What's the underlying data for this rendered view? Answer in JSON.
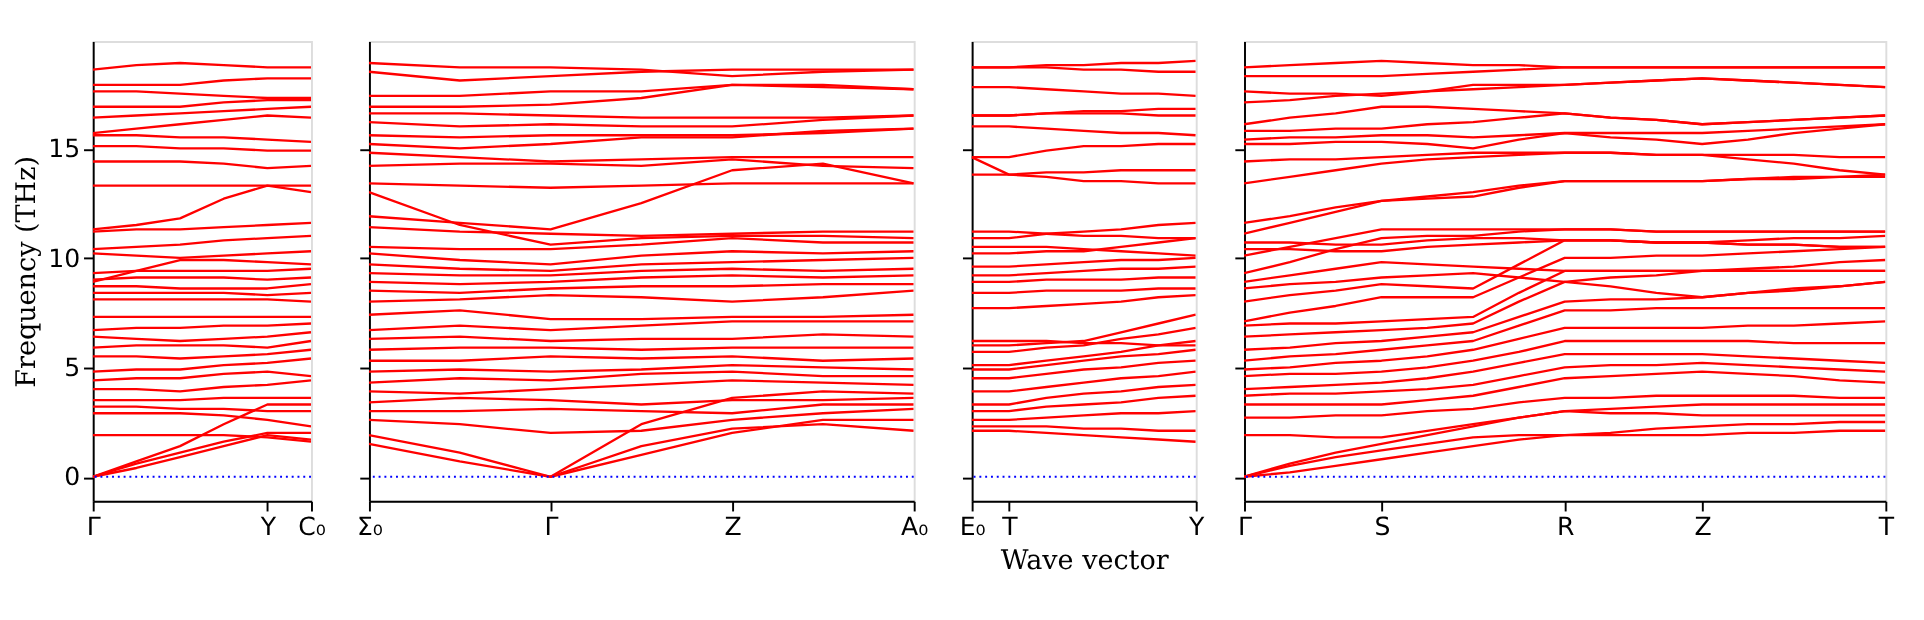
{
  "chart_data": [
    {
      "type": "line",
      "ylabel": "Frequency (THz)",
      "categories": [
        "Γ",
        null,
        null,
        null,
        "Y",
        "C₀"
      ],
      "ylim": [
        -1.1,
        19.9
      ],
      "yticks": [
        0,
        5,
        10,
        15
      ],
      "grid": false,
      "line_style": "solid",
      "marker": "none",
      "ref_lines": [
        {
          "axis": "y",
          "value": 0,
          "color": "#0000ff",
          "line_style": "dotted"
        }
      ],
      "series": [
        {
          "color": "#ff0000",
          "values": [
            0,
            0.4,
            0.9,
            1.4,
            1.9,
            1.7
          ]
        },
        {
          "color": "#ff0000",
          "values": [
            0,
            0.6,
            1.1,
            1.6,
            2.0,
            2.0
          ]
        },
        {
          "color": "#ff0000",
          "values": [
            0,
            0.7,
            1.4,
            2.4,
            3.3,
            3.3
          ]
        },
        {
          "color": "#ff0000",
          "values": [
            1.9,
            1.9,
            1.9,
            1.9,
            1.8,
            1.6
          ]
        },
        {
          "color": "#ff0000",
          "values": [
            2.9,
            2.9,
            2.9,
            2.8,
            2.6,
            2.3
          ]
        },
        {
          "color": "#ff0000",
          "values": [
            3.2,
            3.2,
            3.1,
            3.1,
            3.0,
            3.0
          ]
        },
        {
          "color": "#ff0000",
          "values": [
            3.5,
            3.5,
            3.5,
            3.6,
            3.6,
            3.6
          ]
        },
        {
          "color": "#ff0000",
          "values": [
            4.0,
            4.0,
            3.9,
            4.1,
            4.2,
            4.4
          ]
        },
        {
          "color": "#ff0000",
          "values": [
            4.4,
            4.5,
            4.5,
            4.7,
            4.8,
            4.6
          ]
        },
        {
          "color": "#ff0000",
          "values": [
            4.8,
            4.9,
            4.9,
            5.1,
            5.2,
            5.4
          ]
        },
        {
          "color": "#ff0000",
          "values": [
            5.5,
            5.5,
            5.4,
            5.5,
            5.6,
            5.8
          ]
        },
        {
          "color": "#ff0000",
          "values": [
            5.9,
            6.0,
            6.0,
            6.0,
            5.9,
            6.2
          ]
        },
        {
          "color": "#ff0000",
          "values": [
            6.4,
            6.3,
            6.2,
            6.3,
            6.4,
            6.6
          ]
        },
        {
          "color": "#ff0000",
          "values": [
            6.7,
            6.8,
            6.8,
            6.9,
            6.9,
            7.0
          ]
        },
        {
          "color": "#ff0000",
          "values": [
            7.3,
            7.3,
            7.3,
            7.3,
            7.3,
            7.3
          ]
        },
        {
          "color": "#ff0000",
          "values": [
            8.1,
            8.1,
            8.1,
            8.1,
            8.1,
            8.0
          ]
        },
        {
          "color": "#ff0000",
          "values": [
            8.4,
            8.4,
            8.4,
            8.4,
            8.3,
            8.4
          ]
        },
        {
          "color": "#ff0000",
          "values": [
            8.7,
            8.7,
            8.6,
            8.6,
            8.6,
            8.8
          ]
        },
        {
          "color": "#ff0000",
          "values": [
            9.0,
            9.1,
            9.1,
            9.1,
            9.0,
            9.1
          ]
        },
        {
          "color": "#ff0000",
          "values": [
            9.3,
            9.4,
            9.4,
            9.4,
            9.4,
            9.5
          ]
        },
        {
          "color": "#ff0000",
          "values": [
            8.9,
            9.4,
            9.9,
            9.9,
            9.8,
            9.7
          ]
        },
        {
          "color": "#ff0000",
          "values": [
            10.2,
            10.1,
            10.0,
            10.1,
            10.2,
            10.3
          ]
        },
        {
          "color": "#ff0000",
          "values": [
            10.4,
            10.5,
            10.6,
            10.8,
            10.9,
            11.0
          ]
        },
        {
          "color": "#ff0000",
          "values": [
            11.2,
            11.3,
            11.3,
            11.4,
            11.5,
            11.6
          ]
        },
        {
          "color": "#ff0000",
          "values": [
            11.3,
            11.5,
            11.8,
            12.7,
            13.3,
            13.0
          ]
        },
        {
          "color": "#ff0000",
          "values": [
            13.3,
            13.3,
            13.3,
            13.3,
            13.3,
            13.3
          ]
        },
        {
          "color": "#ff0000",
          "values": [
            14.4,
            14.4,
            14.4,
            14.3,
            14.1,
            14.2
          ]
        },
        {
          "color": "#ff0000",
          "values": [
            15.1,
            15.1,
            15.0,
            15.0,
            14.9,
            14.9
          ]
        },
        {
          "color": "#ff0000",
          "values": [
            15.6,
            15.6,
            15.5,
            15.5,
            15.4,
            15.3
          ]
        },
        {
          "color": "#ff0000",
          "values": [
            15.7,
            15.9,
            16.1,
            16.3,
            16.5,
            16.4
          ]
        },
        {
          "color": "#ff0000",
          "values": [
            16.4,
            16.5,
            16.6,
            16.7,
            16.8,
            16.9
          ]
        },
        {
          "color": "#ff0000",
          "values": [
            16.9,
            16.9,
            16.9,
            17.1,
            17.2,
            17.2
          ]
        },
        {
          "color": "#ff0000",
          "values": [
            17.6,
            17.6,
            17.5,
            17.4,
            17.3,
            17.3
          ]
        },
        {
          "color": "#ff0000",
          "values": [
            17.9,
            17.9,
            17.9,
            18.1,
            18.2,
            18.2
          ]
        },
        {
          "color": "#ff0000",
          "values": [
            18.6,
            18.8,
            18.9,
            18.8,
            18.7,
            18.7
          ]
        }
      ]
    },
    {
      "type": "line",
      "categories": [
        "Σ₀",
        null,
        "Γ",
        null,
        "Z",
        null,
        "A₀"
      ],
      "ylim": [
        -1.1,
        19.9
      ],
      "yticks": [
        {
          "value": 0,
          "label": null
        },
        {
          "value": 5,
          "label": null
        },
        {
          "value": 10,
          "label": null
        },
        {
          "value": 15,
          "label": null
        }
      ],
      "tick_labels": "x",
      "grid": false,
      "line_style": "solid",
      "marker": "none",
      "ref_lines": [
        {
          "axis": "y",
          "value": 0,
          "color": "#0000ff",
          "line_style": "dotted"
        }
      ],
      "series": [
        {
          "color": "#ff0000",
          "values": [
            1.5,
            0.7,
            0,
            1.4,
            2.2,
            2.4,
            2.1
          ]
        },
        {
          "color": "#ff0000",
          "values": [
            1.9,
            1.1,
            0,
            1.0,
            2.0,
            2.6,
            2.6
          ]
        },
        {
          "color": "#ff0000",
          "values": [
            null,
            null,
            0,
            2.4,
            3.6,
            3.9,
            3.8
          ]
        },
        {
          "color": "#ff0000",
          "values": [
            2.6,
            2.4,
            2.0,
            2.1,
            2.6,
            2.9,
            3.1
          ]
        },
        {
          "color": "#ff0000",
          "values": [
            3.0,
            3.0,
            3.1,
            3.0,
            2.9,
            3.3,
            3.3
          ]
        },
        {
          "color": "#ff0000",
          "values": [
            3.4,
            3.6,
            3.5,
            3.3,
            3.5,
            3.5,
            3.6
          ]
        },
        {
          "color": "#ff0000",
          "values": [
            3.9,
            3.8,
            4.0,
            4.2,
            4.4,
            4.3,
            4.2
          ]
        },
        {
          "color": "#ff0000",
          "values": [
            4.3,
            4.5,
            4.4,
            4.7,
            4.8,
            4.6,
            4.6
          ]
        },
        {
          "color": "#ff0000",
          "values": [
            4.8,
            4.9,
            4.8,
            4.9,
            5.1,
            5.0,
            4.9
          ]
        },
        {
          "color": "#ff0000",
          "values": [
            5.3,
            5.3,
            5.5,
            5.4,
            5.5,
            5.3,
            5.4
          ]
        },
        {
          "color": "#ff0000",
          "values": [
            5.8,
            5.9,
            5.9,
            5.8,
            5.9,
            5.9,
            5.9
          ]
        },
        {
          "color": "#ff0000",
          "values": [
            6.3,
            6.4,
            6.2,
            6.3,
            6.3,
            6.5,
            6.4
          ]
        },
        {
          "color": "#ff0000",
          "values": [
            6.7,
            6.9,
            6.7,
            6.9,
            7.1,
            7.1,
            7.1
          ]
        },
        {
          "color": "#ff0000",
          "values": [
            7.4,
            7.6,
            7.2,
            7.2,
            7.3,
            7.3,
            7.4
          ]
        },
        {
          "color": "#ff0000",
          "values": [
            8.0,
            8.1,
            8.3,
            8.2,
            8.0,
            8.2,
            8.5
          ]
        },
        {
          "color": "#ff0000",
          "values": [
            8.5,
            8.4,
            8.6,
            8.7,
            8.7,
            8.8,
            8.8
          ]
        },
        {
          "color": "#ff0000",
          "values": [
            8.9,
            8.8,
            8.9,
            9.1,
            9.2,
            9.1,
            9.2
          ]
        },
        {
          "color": "#ff0000",
          "values": [
            9.3,
            9.2,
            9.2,
            9.4,
            9.5,
            9.4,
            9.5
          ]
        },
        {
          "color": "#ff0000",
          "values": [
            9.7,
            9.5,
            9.4,
            9.7,
            9.8,
            9.9,
            10.0
          ]
        },
        {
          "color": "#ff0000",
          "values": [
            10.2,
            9.9,
            9.7,
            10.1,
            10.3,
            10.2,
            10.3
          ]
        },
        {
          "color": "#ff0000",
          "values": [
            10.5,
            10.4,
            10.4,
            10.6,
            10.9,
            10.7,
            10.7
          ]
        },
        {
          "color": "#ff0000",
          "values": [
            13.0,
            11.5,
            10.6,
            10.9,
            11.0,
            11.0,
            10.9
          ]
        },
        {
          "color": "#ff0000",
          "values": [
            11.4,
            11.2,
            11.1,
            11.0,
            11.1,
            11.2,
            11.2
          ]
        },
        {
          "color": "#ff0000",
          "values": [
            11.9,
            11.6,
            11.3,
            12.5,
            14.0,
            14.3,
            13.4
          ]
        },
        {
          "color": "#ff0000",
          "values": [
            13.4,
            13.3,
            13.2,
            13.3,
            13.4,
            13.4,
            13.4
          ]
        },
        {
          "color": "#ff0000",
          "values": [
            14.2,
            14.3,
            14.3,
            14.2,
            14.5,
            14.2,
            14.1
          ]
        },
        {
          "color": "#ff0000",
          "values": [
            14.8,
            14.6,
            14.4,
            14.5,
            14.6,
            14.6,
            14.6
          ]
        },
        {
          "color": "#ff0000",
          "values": [
            15.2,
            15.0,
            15.2,
            15.5,
            15.5,
            15.8,
            15.9
          ]
        },
        {
          "color": "#ff0000",
          "values": [
            15.6,
            15.5,
            15.6,
            15.6,
            15.6,
            15.7,
            15.9
          ]
        },
        {
          "color": "#ff0000",
          "values": [
            16.2,
            16.0,
            16.1,
            16.0,
            16.0,
            16.3,
            16.5
          ]
        },
        {
          "color": "#ff0000",
          "values": [
            16.6,
            16.6,
            16.5,
            16.4,
            16.4,
            16.4,
            16.5
          ]
        },
        {
          "color": "#ff0000",
          "values": [
            16.9,
            16.9,
            17.0,
            17.3,
            17.9,
            17.8,
            17.7
          ]
        },
        {
          "color": "#ff0000",
          "values": [
            17.4,
            17.4,
            17.6,
            17.6,
            17.9,
            17.9,
            17.7
          ]
        },
        {
          "color": "#ff0000",
          "values": [
            18.5,
            18.1,
            18.3,
            18.5,
            18.6,
            18.6,
            18.6
          ]
        },
        {
          "color": "#ff0000",
          "values": [
            18.9,
            18.7,
            18.7,
            18.6,
            18.3,
            18.5,
            18.6
          ]
        }
      ]
    },
    {
      "type": "line",
      "categories": [
        "E₀",
        "T",
        null,
        null,
        null,
        null,
        "Y"
      ],
      "ylim": [
        -1.1,
        19.9
      ],
      "yticks": [
        {
          "value": 0,
          "label": null
        },
        {
          "value": 5,
          "label": null
        },
        {
          "value": 10,
          "label": null
        },
        {
          "value": 15,
          "label": null
        }
      ],
      "tick_labels": "x",
      "xlabel": "Wave vector",
      "grid": false,
      "line_style": "solid",
      "marker": "none",
      "ref_lines": [
        {
          "axis": "y",
          "value": 0,
          "color": "#0000ff",
          "line_style": "dotted"
        }
      ],
      "series": [
        {
          "color": "#ff0000",
          "values": [
            2.1,
            2.1,
            2.0,
            1.9,
            1.8,
            1.7,
            1.6
          ]
        },
        {
          "color": "#ff0000",
          "values": [
            2.3,
            2.3,
            2.3,
            2.2,
            2.2,
            2.1,
            2.1
          ]
        },
        {
          "color": "#ff0000",
          "values": [
            2.6,
            2.6,
            2.7,
            2.8,
            2.9,
            2.9,
            3.0
          ]
        },
        {
          "color": "#ff0000",
          "values": [
            3.0,
            3.0,
            3.2,
            3.3,
            3.4,
            3.6,
            3.7
          ]
        },
        {
          "color": "#ff0000",
          "values": [
            3.3,
            3.3,
            3.6,
            3.8,
            3.9,
            4.1,
            4.2
          ]
        },
        {
          "color": "#ff0000",
          "values": [
            3.9,
            3.9,
            4.1,
            4.3,
            4.5,
            4.6,
            4.8
          ]
        },
        {
          "color": "#ff0000",
          "values": [
            4.5,
            4.5,
            4.7,
            4.9,
            5.0,
            5.2,
            5.3
          ]
        },
        {
          "color": "#ff0000",
          "values": [
            4.9,
            4.9,
            5.1,
            5.3,
            5.5,
            5.6,
            5.8
          ]
        },
        {
          "color": "#ff0000",
          "values": [
            5.1,
            5.1,
            5.3,
            5.5,
            5.7,
            6.0,
            6.2
          ]
        },
        {
          "color": "#ff0000",
          "values": [
            5.7,
            5.7,
            5.9,
            6.0,
            6.3,
            6.5,
            6.8
          ]
        },
        {
          "color": "#ff0000",
          "values": [
            6.0,
            6.0,
            6.1,
            6.2,
            6.6,
            7.0,
            7.4
          ]
        },
        {
          "color": "#ff0000",
          "values": [
            6.2,
            6.2,
            6.2,
            6.1,
            6.1,
            6.0,
            6.0
          ]
        },
        {
          "color": "#ff0000",
          "values": [
            7.7,
            7.7,
            7.8,
            7.9,
            8.0,
            8.2,
            8.3
          ]
        },
        {
          "color": "#ff0000",
          "values": [
            8.4,
            8.4,
            8.5,
            8.5,
            8.5,
            8.6,
            8.6
          ]
        },
        {
          "color": "#ff0000",
          "values": [
            8.9,
            8.9,
            9.0,
            9.0,
            9.0,
            9.1,
            9.1
          ]
        },
        {
          "color": "#ff0000",
          "values": [
            9.2,
            9.2,
            9.3,
            9.4,
            9.5,
            9.5,
            9.6
          ]
        },
        {
          "color": "#ff0000",
          "values": [
            9.6,
            9.6,
            9.7,
            9.8,
            9.9,
            9.9,
            10.0
          ]
        },
        {
          "color": "#ff0000",
          "values": [
            10.2,
            10.2,
            10.3,
            10.3,
            10.5,
            10.7,
            10.9
          ]
        },
        {
          "color": "#ff0000",
          "values": [
            10.5,
            10.5,
            10.5,
            10.4,
            10.3,
            10.2,
            10.1
          ]
        },
        {
          "color": "#ff0000",
          "values": [
            10.9,
            10.9,
            11.1,
            11.2,
            11.3,
            11.5,
            11.6
          ]
        },
        {
          "color": "#ff0000",
          "values": [
            11.2,
            11.2,
            11.1,
            11.0,
            11.0,
            10.9,
            10.9
          ]
        },
        {
          "color": "#ff0000",
          "values": [
            13.8,
            13.8,
            13.7,
            13.5,
            13.5,
            13.4,
            13.4
          ]
        },
        {
          "color": "#ff0000",
          "values": [
            14.6,
            13.8,
            13.9,
            13.9,
            14.0,
            14.0,
            14.0
          ]
        },
        {
          "color": "#ff0000",
          "values": [
            14.6,
            14.6,
            14.9,
            15.1,
            15.1,
            15.2,
            15.2
          ]
        },
        {
          "color": "#ff0000",
          "values": [
            16.0,
            16.0,
            15.9,
            15.8,
            15.7,
            15.7,
            15.6
          ]
        },
        {
          "color": "#ff0000",
          "values": [
            16.5,
            16.5,
            16.6,
            16.6,
            16.6,
            16.5,
            16.5
          ]
        },
        {
          "color": "#ff0000",
          "values": [
            16.5,
            16.5,
            16.6,
            16.7,
            16.7,
            16.8,
            16.8
          ]
        },
        {
          "color": "#ff0000",
          "values": [
            17.8,
            17.8,
            17.7,
            17.6,
            17.5,
            17.5,
            17.4
          ]
        },
        {
          "color": "#ff0000",
          "values": [
            18.7,
            18.7,
            18.7,
            18.6,
            18.6,
            18.5,
            18.5
          ]
        },
        {
          "color": "#ff0000",
          "values": [
            18.7,
            18.7,
            18.8,
            18.8,
            18.9,
            18.9,
            19.0
          ]
        }
      ]
    },
    {
      "type": "line",
      "categories": [
        "Γ",
        null,
        null,
        "S",
        null,
        null,
        null,
        "R",
        null,
        null,
        "Z",
        null,
        null,
        null,
        "T"
      ],
      "ylim": [
        -1.1,
        19.9
      ],
      "yticks": [
        {
          "value": 0,
          "label": null
        },
        {
          "value": 5,
          "label": null
        },
        {
          "value": 10,
          "label": null
        },
        {
          "value": 15,
          "label": null
        }
      ],
      "tick_labels": "x",
      "grid": false,
      "line_style": "solid",
      "marker": "none",
      "ref_lines": [
        {
          "axis": "y",
          "value": 0,
          "color": "#0000ff",
          "line_style": "dotted"
        }
      ],
      "series": [
        {
          "color": "#ff0000",
          "values": [
            0,
            0.2,
            0.5,
            0.8,
            1.1,
            1.4,
            1.7,
            1.9,
            1.9,
            1.9,
            1.9,
            2.0,
            2.0,
            2.1,
            2.1
          ]
        },
        {
          "color": "#ff0000",
          "values": [
            0,
            0.5,
            0.9,
            1.2,
            1.5,
            1.8,
            1.9,
            1.9,
            2.0,
            2.2,
            2.3,
            2.4,
            2.4,
            2.5,
            2.5
          ]
        },
        {
          "color": "#ff0000",
          "values": [
            0,
            0.6,
            1.1,
            1.5,
            1.9,
            2.3,
            2.7,
            3.0,
            2.9,
            2.9,
            2.8,
            2.8,
            2.8,
            2.8,
            2.8
          ]
        },
        {
          "color": "#ff0000",
          "values": [
            1.9,
            1.9,
            1.8,
            1.8,
            2.1,
            2.4,
            2.7,
            3.0,
            3.1,
            3.2,
            3.3,
            3.3,
            3.3,
            3.3,
            3.3
          ]
        },
        {
          "color": "#ff0000",
          "values": [
            2.7,
            2.7,
            2.8,
            2.8,
            3.0,
            3.1,
            3.4,
            3.6,
            3.6,
            3.7,
            3.7,
            3.7,
            3.7,
            3.6,
            3.6
          ]
        },
        {
          "color": "#ff0000",
          "values": [
            3.3,
            3.3,
            3.3,
            3.3,
            3.5,
            3.7,
            4.1,
            4.5,
            4.6,
            4.7,
            4.8,
            4.7,
            4.6,
            4.4,
            4.3
          ]
        },
        {
          "color": "#ff0000",
          "values": [
            3.7,
            3.8,
            3.8,
            3.9,
            4.0,
            4.2,
            4.6,
            5.0,
            5.1,
            5.1,
            5.2,
            5.1,
            5.0,
            4.9,
            4.8
          ]
        },
        {
          "color": "#ff0000",
          "values": [
            4.0,
            4.1,
            4.2,
            4.3,
            4.5,
            4.8,
            5.2,
            5.6,
            5.6,
            5.6,
            5.6,
            5.5,
            5.4,
            5.3,
            5.2
          ]
        },
        {
          "color": "#ff0000",
          "values": [
            4.6,
            4.7,
            4.7,
            4.8,
            5.0,
            5.3,
            5.7,
            6.2,
            6.2,
            6.2,
            6.2,
            6.2,
            6.1,
            6.1,
            6.1
          ]
        },
        {
          "color": "#ff0000",
          "values": [
            4.9,
            5.0,
            5.2,
            5.3,
            5.5,
            5.8,
            6.3,
            6.8,
            6.8,
            6.8,
            6.8,
            6.9,
            6.9,
            7.0,
            7.1
          ]
        },
        {
          "color": "#ff0000",
          "values": [
            5.3,
            5.5,
            5.6,
            5.8,
            6.0,
            6.2,
            6.9,
            7.6,
            7.6,
            7.7,
            7.7,
            7.7,
            7.7,
            7.7,
            7.7
          ]
        },
        {
          "color": "#ff0000",
          "values": [
            5.8,
            5.9,
            6.1,
            6.2,
            6.4,
            6.6,
            7.3,
            8.0,
            8.1,
            8.1,
            8.2,
            8.4,
            8.5,
            8.7,
            8.9
          ]
        },
        {
          "color": "#ff0000",
          "values": [
            6.4,
            6.5,
            6.6,
            6.7,
            6.8,
            7.0,
            8.0,
            8.9,
            9.1,
            9.2,
            9.4,
            9.4,
            9.4,
            9.4,
            9.4
          ]
        },
        {
          "color": "#ff0000",
          "values": [
            6.9,
            7.0,
            7.0,
            7.1,
            7.2,
            7.3,
            8.4,
            9.4,
            9.4,
            9.4,
            9.4,
            9.5,
            9.6,
            9.8,
            9.9
          ]
        },
        {
          "color": "#ff0000",
          "values": [
            7.1,
            7.5,
            7.8,
            8.2,
            8.2,
            8.2,
            9.1,
            10.0,
            10.0,
            10.1,
            10.1,
            10.2,
            10.3,
            10.4,
            10.5
          ]
        },
        {
          "color": "#ff0000",
          "values": [
            8.0,
            8.3,
            8.5,
            8.8,
            8.7,
            8.6,
            9.7,
            10.8,
            10.8,
            10.7,
            10.7,
            10.8,
            10.9,
            10.9,
            11.0
          ]
        },
        {
          "color": "#ff0000",
          "values": [
            8.6,
            8.8,
            8.9,
            9.1,
            9.2,
            9.3,
            9.1,
            8.9,
            8.7,
            8.4,
            8.2,
            8.4,
            8.6,
            8.7,
            8.9
          ]
        },
        {
          "color": "#ff0000",
          "values": [
            8.9,
            9.2,
            9.5,
            9.8,
            9.7,
            9.6,
            9.5,
            9.4,
            9.4,
            9.4,
            9.4,
            9.4,
            9.4,
            9.4,
            9.4
          ]
        },
        {
          "color": "#ff0000",
          "values": [
            9.3,
            9.8,
            10.4,
            10.9,
            11.0,
            11.0,
            11.2,
            11.3,
            11.3,
            11.2,
            11.2,
            11.2,
            11.2,
            11.2,
            11.2
          ]
        },
        {
          "color": "#ff0000",
          "values": [
            10.1,
            10.5,
            10.9,
            11.3,
            11.3,
            11.3,
            11.3,
            11.3,
            11.3,
            11.2,
            11.2,
            11.2,
            11.2,
            11.2,
            11.2
          ]
        },
        {
          "color": "#ff0000",
          "values": [
            10.4,
            10.4,
            10.3,
            10.3,
            10.5,
            10.6,
            10.7,
            10.8,
            10.8,
            10.7,
            10.7,
            10.6,
            10.6,
            10.5,
            10.5
          ]
        },
        {
          "color": "#ff0000",
          "values": [
            10.7,
            10.7,
            10.6,
            10.6,
            10.8,
            10.9,
            10.9,
            10.8,
            10.8,
            10.7,
            10.7,
            10.6,
            10.6,
            10.5,
            10.5
          ]
        },
        {
          "color": "#ff0000",
          "values": [
            11.1,
            11.6,
            12.1,
            12.6,
            12.8,
            13.0,
            13.3,
            13.5,
            13.5,
            13.5,
            13.5,
            13.6,
            13.6,
            13.7,
            13.7
          ]
        },
        {
          "color": "#ff0000",
          "values": [
            11.6,
            11.9,
            12.3,
            12.6,
            12.7,
            12.8,
            13.2,
            13.5,
            13.5,
            13.5,
            13.5,
            13.6,
            13.7,
            13.7,
            13.8
          ]
        },
        {
          "color": "#ff0000",
          "values": [
            13.4,
            13.7,
            14.0,
            14.3,
            14.5,
            14.6,
            14.7,
            14.8,
            14.8,
            14.7,
            14.7,
            14.5,
            14.3,
            14.0,
            13.8
          ]
        },
        {
          "color": "#ff0000",
          "values": [
            14.4,
            14.5,
            14.5,
            14.6,
            14.7,
            14.8,
            14.8,
            14.8,
            14.8,
            14.7,
            14.7,
            14.7,
            14.7,
            14.6,
            14.6
          ]
        },
        {
          "color": "#ff0000",
          "values": [
            15.2,
            15.2,
            15.3,
            15.3,
            15.2,
            15.0,
            15.4,
            15.7,
            15.7,
            15.7,
            15.7,
            15.8,
            15.9,
            16.0,
            16.1
          ]
        },
        {
          "color": "#ff0000",
          "values": [
            15.4,
            15.5,
            15.5,
            15.6,
            15.6,
            15.5,
            15.6,
            15.7,
            15.5,
            15.4,
            15.2,
            15.4,
            15.7,
            15.9,
            16.1
          ]
        },
        {
          "color": "#ff0000",
          "values": [
            15.8,
            15.8,
            15.9,
            15.9,
            16.1,
            16.2,
            16.4,
            16.6,
            16.4,
            16.3,
            16.1,
            16.2,
            16.3,
            16.4,
            16.5
          ]
        },
        {
          "color": "#ff0000",
          "values": [
            16.1,
            16.4,
            16.6,
            16.9,
            16.9,
            16.8,
            16.7,
            16.6,
            16.4,
            16.3,
            16.1,
            16.2,
            16.3,
            16.4,
            16.5
          ]
        },
        {
          "color": "#ff0000",
          "values": [
            17.1,
            17.2,
            17.4,
            17.5,
            17.6,
            17.7,
            17.8,
            17.9,
            18.0,
            18.1,
            18.2,
            18.1,
            18.0,
            17.9,
            17.8
          ]
        },
        {
          "color": "#ff0000",
          "values": [
            17.6,
            17.5,
            17.5,
            17.4,
            17.6,
            17.9,
            17.9,
            17.9,
            18.0,
            18.1,
            18.2,
            18.1,
            18.0,
            17.9,
            17.8
          ]
        },
        {
          "color": "#ff0000",
          "values": [
            18.3,
            18.3,
            18.3,
            18.3,
            18.4,
            18.5,
            18.6,
            18.7,
            18.7,
            18.7,
            18.7,
            18.7,
            18.7,
            18.7,
            18.7
          ]
        },
        {
          "color": "#ff0000",
          "values": [
            18.7,
            18.8,
            18.9,
            19.0,
            18.9,
            18.8,
            18.8,
            18.7,
            18.7,
            18.7,
            18.7,
            18.7,
            18.7,
            18.7,
            18.7
          ]
        }
      ]
    }
  ]
}
